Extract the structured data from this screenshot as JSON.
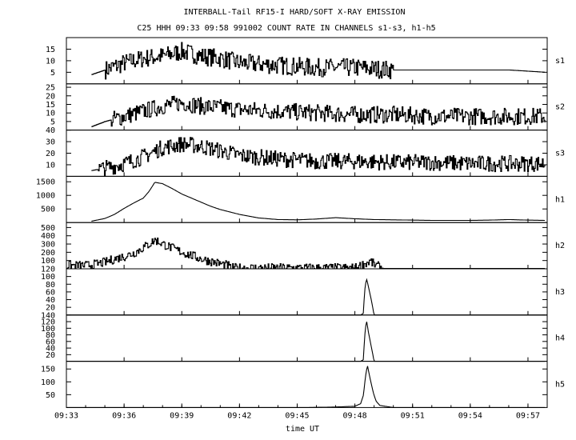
{
  "chart_data": {
    "type": "line",
    "title": "INTERBALL-Tail RF15-I HARD/SOFT X-RAY EMISSION",
    "subtitle": "C25 HHH 09:33 09:58 991002  COUNT RATE IN CHANNELS s1-s3, h1-h5",
    "xlabel": "time UT",
    "x_ticks": [
      "09:33",
      "09:36",
      "09:39",
      "09:42",
      "09:45",
      "09:48",
      "09:51",
      "09:54",
      "09:57"
    ],
    "xlim_minutes": [
      573.0,
      598.0
    ],
    "panels": [
      {
        "label": "s1",
        "ylim": [
          0,
          20
        ],
        "yticks": [
          5,
          10,
          15
        ],
        "x": [
          574.3,
          575,
          576,
          577,
          578,
          579,
          580,
          581,
          582,
          584,
          586,
          588,
          590,
          592,
          594,
          596,
          597.9
        ],
        "values": [
          4,
          6,
          9,
          11,
          12,
          14,
          12,
          11,
          9,
          8,
          7,
          7,
          6,
          6,
          6,
          6,
          5
        ],
        "noise": 4
      },
      {
        "label": "s2",
        "ylim": [
          0,
          27
        ],
        "yticks": [
          5,
          10,
          15,
          20,
          25
        ],
        "x": [
          574.3,
          575,
          576,
          577,
          578,
          579,
          580,
          581,
          582,
          584,
          586,
          588,
          590,
          592,
          594,
          596,
          597.9
        ],
        "values": [
          2,
          5,
          8,
          11,
          14,
          16,
          14,
          13,
          12,
          11,
          10,
          9,
          9,
          8,
          8,
          8,
          8
        ],
        "noise": 5
      },
      {
        "label": "s3",
        "ylim": [
          0,
          40
        ],
        "yticks": [
          10,
          20,
          30,
          40
        ],
        "x": [
          574.3,
          575,
          576,
          577,
          578,
          579,
          580,
          581,
          582,
          584,
          586,
          588,
          590,
          592,
          594,
          596,
          597.9
        ],
        "values": [
          5,
          7,
          11,
          17,
          25,
          28,
          26,
          22,
          18,
          15,
          13,
          13,
          12,
          12,
          11,
          11,
          11
        ],
        "noise": 7
      },
      {
        "label": "h1",
        "ylim": [
          0,
          1700
        ],
        "yticks": [
          500,
          1000,
          1500
        ],
        "x": [
          574.3,
          575,
          575.5,
          576,
          576.5,
          577,
          577.3,
          577.6,
          578,
          578.5,
          579,
          579.5,
          580,
          580.5,
          581,
          582,
          583,
          584,
          585,
          586,
          587,
          588,
          589,
          590,
          591,
          592,
          593,
          594,
          595,
          596,
          597,
          597.9
        ],
        "values": [
          50,
          150,
          300,
          520,
          720,
          900,
          1150,
          1480,
          1430,
          1250,
          1050,
          900,
          750,
          600,
          480,
          300,
          170,
          110,
          100,
          130,
          180,
          140,
          110,
          100,
          90,
          80,
          80,
          80,
          90,
          110,
          90,
          80
        ],
        "noise": 0
      },
      {
        "label": "h2",
        "ylim": [
          0,
          560
        ],
        "yticks": [
          100,
          200,
          300,
          400,
          500
        ],
        "x": [
          573,
          574,
          574.5,
          575,
          575.5,
          576,
          576.5,
          577,
          577.3,
          577.6,
          578,
          578.5,
          579,
          579.5,
          580,
          580.5,
          581,
          581.4,
          581.5,
          583,
          585,
          586,
          587,
          588,
          588.5,
          588.8,
          589,
          589.5,
          590,
          592,
          594,
          596,
          597.9
        ],
        "values": [
          40,
          40,
          55,
          80,
          120,
          150,
          190,
          260,
          300,
          350,
          300,
          250,
          200,
          160,
          120,
          90,
          60,
          40,
          10,
          10,
          10,
          10,
          10,
          10,
          60,
          90,
          50,
          5,
          5,
          5,
          5,
          5,
          5
        ],
        "noise": 55
      },
      {
        "label": "h3",
        "ylim": [
          0,
          120
        ],
        "yticks": [
          20,
          40,
          60,
          80,
          100,
          120
        ],
        "x": [
          573,
          588,
          588.3,
          588.45,
          588.5,
          588.6,
          588.7,
          588.85,
          589,
          590,
          597.9
        ],
        "values": [
          0,
          0,
          0,
          5,
          60,
          95,
          75,
          40,
          0,
          0,
          0
        ],
        "noise": 0
      },
      {
        "label": "h4",
        "ylim": [
          0,
          140
        ],
        "yticks": [
          20,
          40,
          60,
          80,
          100,
          120,
          140
        ],
        "x": [
          573,
          588,
          588.3,
          588.45,
          588.5,
          588.6,
          588.7,
          588.85,
          589,
          590,
          597.9
        ],
        "values": [
          0,
          0,
          0,
          5,
          70,
          125,
          90,
          45,
          0,
          0,
          0
        ],
        "noise": 0
      },
      {
        "label": "h5",
        "ylim": [
          0,
          180
        ],
        "yticks": [
          50,
          100,
          150
        ],
        "x": [
          573,
          585.5,
          587,
          588,
          588.3,
          588.45,
          588.55,
          588.65,
          588.8,
          588.95,
          589.1,
          589.3,
          590,
          597.9
        ],
        "values": [
          0,
          0,
          2,
          5,
          15,
          50,
          120,
          165,
          110,
          60,
          25,
          8,
          0,
          0
        ],
        "noise": 0
      }
    ],
    "grid": false,
    "legend": "none"
  }
}
